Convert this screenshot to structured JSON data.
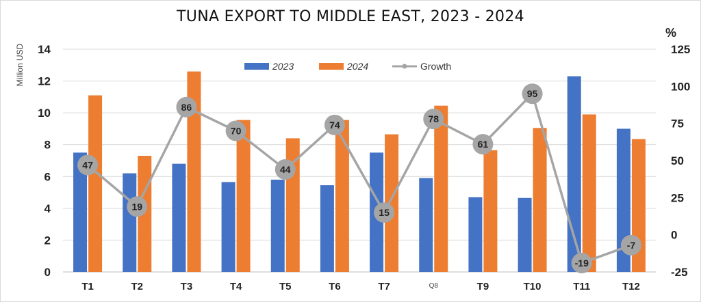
{
  "chart_data": {
    "type": "bar",
    "title": "TUNA EXPORT TO MIDDLE EAST, 2023 - 2024",
    "ylabel": "Million USD",
    "y2label": "%",
    "categories": [
      "T1",
      "T2",
      "T3",
      "T4",
      "T5",
      "T6",
      "T7",
      "Q8",
      "T9",
      "T10",
      "T11",
      "T12"
    ],
    "ylim": [
      0,
      14
    ],
    "y_ticks": [
      0,
      2,
      4,
      6,
      8,
      10,
      12,
      14
    ],
    "y2lim": [
      -25,
      125
    ],
    "y2_ticks": [
      -25,
      0,
      25,
      50,
      75,
      100,
      125
    ],
    "series": [
      {
        "name": "2023",
        "kind": "bar",
        "color": "#4472C4",
        "values": [
          7.5,
          6.2,
          6.8,
          5.65,
          5.8,
          5.45,
          7.5,
          5.9,
          4.7,
          4.65,
          12.3,
          9.0
        ]
      },
      {
        "name": "2024",
        "kind": "bar",
        "color": "#ED7D31",
        "values": [
          11.1,
          7.3,
          12.6,
          9.55,
          8.4,
          9.55,
          8.65,
          10.45,
          7.65,
          9.05,
          9.9,
          8.35
        ]
      },
      {
        "name": "Growth",
        "kind": "line",
        "axis": "right",
        "color": "#A5A5A5",
        "values": [
          47,
          19,
          86,
          70,
          44,
          74,
          15,
          78,
          61,
          95,
          -19,
          -7
        ]
      }
    ],
    "legend_position": "top-center",
    "grid": true
  }
}
